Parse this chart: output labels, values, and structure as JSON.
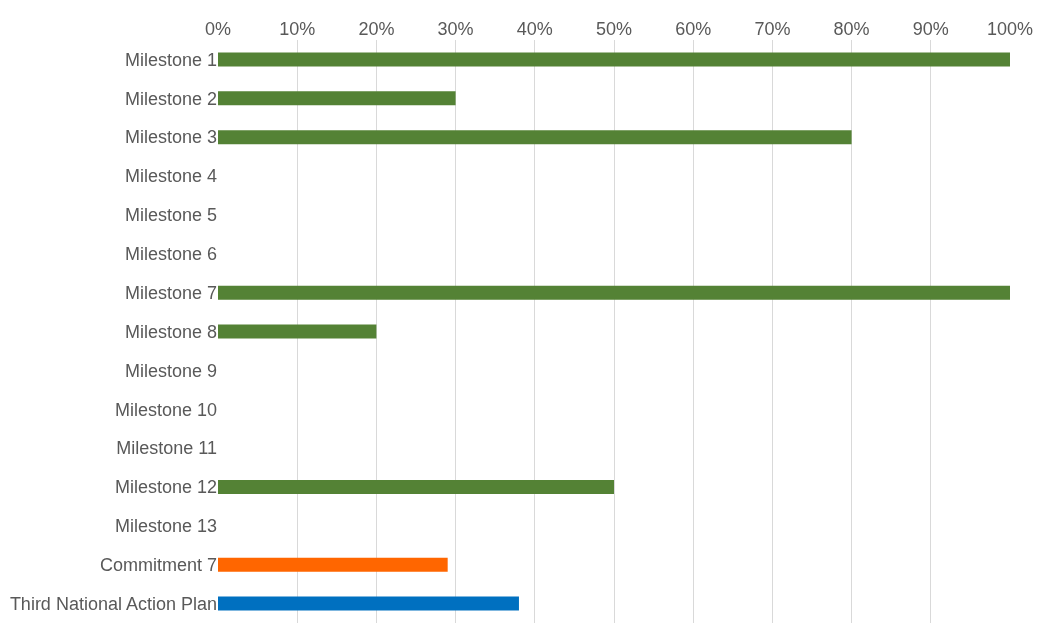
{
  "chart_data": {
    "type": "bar",
    "orientation": "horizontal",
    "categories": [
      "Milestone 1",
      "Milestone 2",
      "Milestone 3",
      "Milestone 4",
      "Milestone 5",
      "Milestone 6",
      "Milestone 7",
      "Milestone 8",
      "Milestone 9",
      "Milestone 10",
      "Milestone 11",
      "Milestone 12",
      "Milestone 13",
      "Commitment 7",
      "Third National Action Plan"
    ],
    "values": [
      100,
      30,
      80,
      0,
      0,
      0,
      100,
      20,
      0,
      0,
      0,
      50,
      0,
      29,
      38
    ],
    "colors": [
      "#548235",
      "#548235",
      "#548235",
      "#548235",
      "#548235",
      "#548235",
      "#548235",
      "#548235",
      "#548235",
      "#548235",
      "#548235",
      "#548235",
      "#548235",
      "#ff6600",
      "#0070c0"
    ],
    "xlim": [
      0,
      100
    ],
    "xticks": [
      {
        "value": 0,
        "label": "0%"
      },
      {
        "value": 10,
        "label": "10%"
      },
      {
        "value": 20,
        "label": "20%"
      },
      {
        "value": 30,
        "label": "30%"
      },
      {
        "value": 40,
        "label": "40%"
      },
      {
        "value": 50,
        "label": "50%"
      },
      {
        "value": 60,
        "label": "60%"
      },
      {
        "value": 70,
        "label": "70%"
      },
      {
        "value": 80,
        "label": "80%"
      },
      {
        "value": 90,
        "label": "90%"
      },
      {
        "value": 100,
        "label": "100%"
      }
    ],
    "grid": "x"
  }
}
